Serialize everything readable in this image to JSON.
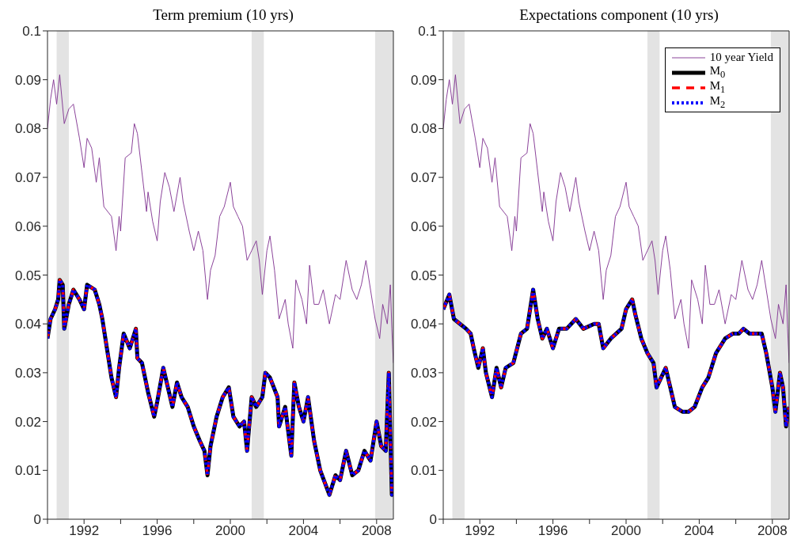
{
  "chart_data": [
    {
      "type": "line",
      "title": "Term premium (10 yrs)",
      "xlim": [
        "1990-01",
        "2008-12"
      ],
      "ylim": [
        0,
        0.1
      ],
      "xticks": [
        {
          "value": "1990",
          "label": null
        },
        "1992",
        {
          "value": "1994",
          "label": null
        },
        "1996",
        {
          "value": "1998",
          "label": null
        },
        "2000",
        {
          "value": "2002",
          "label": null
        },
        "2004",
        {
          "value": "2006",
          "label": null
        },
        "2008"
      ],
      "yticks": [
        0,
        0.01,
        0.02,
        0.03,
        0.04,
        0.05,
        0.06,
        0.07,
        0.08,
        0.09,
        0.1
      ],
      "grid": false,
      "legend": false,
      "bands": [
        {
          "axis": "x",
          "from": "1990-07",
          "to": "1991-03",
          "color": "#e3e3e3"
        },
        {
          "axis": "x",
          "from": "2001-03",
          "to": "2001-11",
          "color": "#e3e3e3"
        },
        {
          "axis": "x",
          "from": "2007-12",
          "to": "2008-12",
          "color": "#e3e3e3"
        }
      ],
      "series": [
        {
          "color": "#7e2f8e",
          "line_style": "solid",
          "x": [
            "1990-01",
            "1990-03",
            "1990-05",
            "1990-07",
            "1990-09",
            "1990-12",
            "1991-03",
            "1991-06",
            "1991-10",
            "1992-01",
            "1992-03",
            "1992-06",
            "1992-09",
            "1992-11",
            "1993-02",
            "1993-07",
            "1993-10",
            "1993-12",
            "1994-01",
            "1994-04",
            "1994-08",
            "1994-10",
            "1994-12",
            "1995-03",
            "1995-06",
            "1995-07",
            "1995-10",
            "1996-01",
            "1996-03",
            "1996-06",
            "1996-09",
            "1996-12",
            "1997-04",
            "1997-06",
            "1997-10",
            "1998-01",
            "1998-04",
            "1998-07",
            "1998-10",
            "1998-12",
            "1999-03",
            "1999-06",
            "1999-09",
            "2000-01",
            "2000-03",
            "2000-06",
            "2000-09",
            "2000-12",
            "2001-03",
            "2001-06",
            "2001-08",
            "2001-10",
            "2002-01",
            "2002-03",
            "2002-06",
            "2002-09",
            "2003-01",
            "2003-03",
            "2003-06",
            "2003-08",
            "2003-12",
            "2004-03",
            "2004-05",
            "2004-08",
            "2004-11",
            "2005-02",
            "2005-06",
            "2005-10",
            "2006-01",
            "2006-05",
            "2006-09",
            "2006-12",
            "2007-03",
            "2007-06",
            "2007-09",
            "2007-12",
            "2008-03",
            "2008-05",
            "2008-08",
            "2008-10",
            "2008-11",
            "2008-12"
          ],
          "values": [
            0.08,
            0.086,
            0.09,
            0.085,
            0.091,
            0.081,
            0.084,
            0.085,
            0.078,
            0.072,
            0.078,
            0.076,
            0.069,
            0.074,
            0.064,
            0.062,
            0.055,
            0.062,
            0.059,
            0.074,
            0.075,
            0.081,
            0.079,
            0.071,
            0.063,
            0.067,
            0.061,
            0.057,
            0.065,
            0.071,
            0.068,
            0.063,
            0.07,
            0.065,
            0.059,
            0.055,
            0.059,
            0.055,
            0.045,
            0.051,
            0.054,
            0.062,
            0.064,
            0.069,
            0.064,
            0.062,
            0.06,
            0.053,
            0.055,
            0.057,
            0.053,
            0.046,
            0.055,
            0.058,
            0.051,
            0.041,
            0.045,
            0.04,
            0.035,
            0.049,
            0.045,
            0.04,
            0.052,
            0.044,
            0.044,
            0.047,
            0.04,
            0.046,
            0.045,
            0.053,
            0.047,
            0.045,
            0.048,
            0.053,
            0.047,
            0.041,
            0.037,
            0.044,
            0.04,
            0.048,
            0.039,
            0.032
          ]
        },
        {
          "color": "#000000",
          "line_style": "solid",
          "x": [
            "1990-01",
            "1990-03",
            "1990-06",
            "1990-08",
            "1990-09",
            "1990-11",
            "1990-12",
            "1991-03",
            "1991-06",
            "1991-10",
            "1992-01",
            "1992-03",
            "1992-08",
            "1992-11",
            "1993-01",
            "1993-04",
            "1993-07",
            "1993-10",
            "1993-12",
            "1994-03",
            "1994-07",
            "1994-11",
            "1994-12",
            "1995-03",
            "1995-07",
            "1995-11",
            "1996-01",
            "1996-05",
            "1996-08",
            "1996-11",
            "1997-02",
            "1997-05",
            "1997-09",
            "1998-01",
            "1998-05",
            "1998-08",
            "1998-10",
            "1998-12",
            "1999-04",
            "1999-08",
            "1999-12",
            "2000-03",
            "2000-07",
            "2000-10",
            "2000-12",
            "2001-03",
            "2001-06",
            "2001-10",
            "2001-12",
            "2002-03",
            "2002-08",
            "2002-09",
            "2003-01",
            "2003-05",
            "2003-07",
            "2003-10",
            "2004-01",
            "2004-04",
            "2004-08",
            "2004-12",
            "2005-06",
            "2005-10",
            "2006-01",
            "2006-05",
            "2006-09",
            "2007-01",
            "2007-05",
            "2007-09",
            "2008-01",
            "2008-04",
            "2008-07",
            "2008-09",
            "2008-11",
            "2008-12"
          ],
          "values": [
            0.037,
            0.041,
            0.043,
            0.045,
            0.049,
            0.048,
            0.039,
            0.044,
            0.047,
            0.045,
            0.043,
            0.048,
            0.047,
            0.044,
            0.041,
            0.035,
            0.029,
            0.025,
            0.031,
            0.038,
            0.035,
            0.039,
            0.033,
            0.032,
            0.026,
            0.021,
            0.024,
            0.031,
            0.027,
            0.023,
            0.028,
            0.025,
            0.023,
            0.019,
            0.016,
            0.014,
            0.009,
            0.015,
            0.021,
            0.025,
            0.027,
            0.021,
            0.019,
            0.02,
            0.014,
            0.025,
            0.023,
            0.025,
            0.03,
            0.029,
            0.025,
            0.019,
            0.023,
            0.013,
            0.028,
            0.023,
            0.02,
            0.025,
            0.016,
            0.01,
            0.005,
            0.009,
            0.008,
            0.014,
            0.009,
            0.01,
            0.014,
            0.012,
            0.02,
            0.015,
            0.014,
            0.03,
            0.005,
            0.009
          ]
        },
        {
          "color": "#ff0000",
          "line_style": "dashed",
          "x": [
            "1990-01",
            "1990-03",
            "1990-06",
            "1990-08",
            "1990-09",
            "1990-11",
            "1990-12",
            "1991-03",
            "1991-06",
            "1991-10",
            "1992-01",
            "1992-03",
            "1992-08",
            "1992-11",
            "1993-01",
            "1993-04",
            "1993-07",
            "1993-10",
            "1993-12",
            "1994-03",
            "1994-07",
            "1994-11",
            "1994-12",
            "1995-03",
            "1995-07",
            "1995-11",
            "1996-01",
            "1996-05",
            "1996-08",
            "1996-11",
            "1997-02",
            "1997-05",
            "1997-09",
            "1998-01",
            "1998-05",
            "1998-08",
            "1998-10",
            "1998-12",
            "1999-04",
            "1999-08",
            "1999-12",
            "2000-03",
            "2000-07",
            "2000-10",
            "2000-12",
            "2001-03",
            "2001-06",
            "2001-10",
            "2001-12",
            "2002-03",
            "2002-08",
            "2002-09",
            "2003-01",
            "2003-05",
            "2003-07",
            "2003-10",
            "2004-01",
            "2004-04",
            "2004-08",
            "2004-12",
            "2005-06",
            "2005-10",
            "2006-01",
            "2006-05",
            "2006-09",
            "2007-01",
            "2007-05",
            "2007-09",
            "2008-01",
            "2008-04",
            "2008-07",
            "2008-09",
            "2008-11",
            "2008-12"
          ],
          "values": [
            0.037,
            0.041,
            0.043,
            0.045,
            0.049,
            0.048,
            0.039,
            0.044,
            0.047,
            0.045,
            0.043,
            0.048,
            0.047,
            0.044,
            0.041,
            0.035,
            0.029,
            0.025,
            0.031,
            0.038,
            0.035,
            0.039,
            0.033,
            0.032,
            0.026,
            0.021,
            0.024,
            0.031,
            0.027,
            0.023,
            0.028,
            0.025,
            0.023,
            0.019,
            0.016,
            0.014,
            0.009,
            0.015,
            0.021,
            0.025,
            0.027,
            0.021,
            0.019,
            0.02,
            0.014,
            0.025,
            0.023,
            0.025,
            0.03,
            0.029,
            0.025,
            0.019,
            0.023,
            0.013,
            0.028,
            0.023,
            0.02,
            0.025,
            0.016,
            0.01,
            0.005,
            0.009,
            0.008,
            0.014,
            0.009,
            0.01,
            0.014,
            0.012,
            0.02,
            0.015,
            0.014,
            0.03,
            0.005,
            0.009
          ]
        },
        {
          "color": "#0000ff",
          "line_style": "dotted",
          "x": [
            "1990-01",
            "1990-03",
            "1990-06",
            "1990-08",
            "1990-09",
            "1990-11",
            "1990-12",
            "1991-03",
            "1991-06",
            "1991-10",
            "1992-01",
            "1992-03",
            "1992-08",
            "1992-11",
            "1993-01",
            "1993-04",
            "1993-07",
            "1993-10",
            "1993-12",
            "1994-03",
            "1994-07",
            "1994-11",
            "1994-12",
            "1995-03",
            "1995-07",
            "1995-11",
            "1996-01",
            "1996-05",
            "1996-08",
            "1996-11",
            "1997-02",
            "1997-05",
            "1997-09",
            "1998-01",
            "1998-05",
            "1998-08",
            "1998-10",
            "1998-12",
            "1999-04",
            "1999-08",
            "1999-12",
            "2000-03",
            "2000-07",
            "2000-10",
            "2000-12",
            "2001-03",
            "2001-06",
            "2001-10",
            "2001-12",
            "2002-03",
            "2002-08",
            "2002-09",
            "2003-01",
            "2003-05",
            "2003-07",
            "2003-10",
            "2004-01",
            "2004-04",
            "2004-08",
            "2004-12",
            "2005-06",
            "2005-10",
            "2006-01",
            "2006-05",
            "2006-09",
            "2007-01",
            "2007-05",
            "2007-09",
            "2008-01",
            "2008-04",
            "2008-07",
            "2008-09",
            "2008-11",
            "2008-12"
          ],
          "values": [
            0.037,
            0.041,
            0.043,
            0.045,
            0.049,
            0.048,
            0.039,
            0.044,
            0.047,
            0.045,
            0.043,
            0.048,
            0.047,
            0.044,
            0.041,
            0.035,
            0.029,
            0.025,
            0.031,
            0.038,
            0.035,
            0.039,
            0.033,
            0.032,
            0.026,
            0.021,
            0.024,
            0.031,
            0.027,
            0.023,
            0.028,
            0.025,
            0.023,
            0.019,
            0.016,
            0.014,
            0.009,
            0.015,
            0.021,
            0.025,
            0.027,
            0.021,
            0.019,
            0.02,
            0.014,
            0.025,
            0.023,
            0.025,
            0.03,
            0.029,
            0.025,
            0.019,
            0.023,
            0.013,
            0.028,
            0.023,
            0.02,
            0.025,
            0.016,
            0.01,
            0.005,
            0.009,
            0.008,
            0.014,
            0.009,
            0.01,
            0.014,
            0.012,
            0.02,
            0.015,
            0.014,
            0.03,
            0.005,
            0.009
          ]
        }
      ]
    },
    {
      "type": "line",
      "title": "Expectations component (10 yrs)",
      "xlim": [
        "1990-01",
        "2008-12"
      ],
      "ylim": [
        0,
        0.1
      ],
      "xticks": [
        {
          "value": "1990",
          "label": null
        },
        "1992",
        {
          "value": "1994",
          "label": null
        },
        "1996",
        {
          "value": "1998",
          "label": null
        },
        "2000",
        {
          "value": "2002",
          "label": null
        },
        "2004",
        {
          "value": "2006",
          "label": null
        },
        "2008"
      ],
      "yticks": [
        0,
        0.01,
        0.02,
        0.03,
        0.04,
        0.05,
        0.06,
        0.07,
        0.08,
        0.09,
        0.1
      ],
      "grid": false,
      "legend": "top right",
      "bands": [
        {
          "axis": "x",
          "from": "1990-07",
          "to": "1991-03",
          "color": "#e3e3e3"
        },
        {
          "axis": "x",
          "from": "2001-03",
          "to": "2001-11",
          "color": "#e3e3e3"
        },
        {
          "axis": "x",
          "from": "2007-12",
          "to": "2008-12",
          "color": "#e3e3e3"
        }
      ],
      "series": [
        {
          "name": "10 year Yield",
          "color": "#7e2f8e",
          "line_style": "solid",
          "x": [
            "1990-01",
            "1990-03",
            "1990-05",
            "1990-07",
            "1990-09",
            "1990-12",
            "1991-03",
            "1991-06",
            "1991-10",
            "1992-01",
            "1992-03",
            "1992-06",
            "1992-09",
            "1992-11",
            "1993-02",
            "1993-07",
            "1993-10",
            "1993-12",
            "1994-01",
            "1994-04",
            "1994-08",
            "1994-10",
            "1994-12",
            "1995-03",
            "1995-06",
            "1995-07",
            "1995-10",
            "1996-01",
            "1996-03",
            "1996-06",
            "1996-09",
            "1996-12",
            "1997-04",
            "1997-06",
            "1997-10",
            "1998-01",
            "1998-04",
            "1998-07",
            "1998-10",
            "1998-12",
            "1999-03",
            "1999-06",
            "1999-09",
            "2000-01",
            "2000-03",
            "2000-06",
            "2000-09",
            "2000-12",
            "2001-03",
            "2001-06",
            "2001-08",
            "2001-10",
            "2002-01",
            "2002-03",
            "2002-06",
            "2002-09",
            "2003-01",
            "2003-03",
            "2003-06",
            "2003-08",
            "2003-12",
            "2004-03",
            "2004-05",
            "2004-08",
            "2004-11",
            "2005-02",
            "2005-06",
            "2005-10",
            "2006-01",
            "2006-05",
            "2006-09",
            "2006-12",
            "2007-03",
            "2007-06",
            "2007-09",
            "2007-12",
            "2008-03",
            "2008-05",
            "2008-08",
            "2008-10",
            "2008-11",
            "2008-12"
          ],
          "values": [
            0.08,
            0.086,
            0.09,
            0.085,
            0.091,
            0.081,
            0.084,
            0.085,
            0.078,
            0.072,
            0.078,
            0.076,
            0.069,
            0.074,
            0.064,
            0.062,
            0.055,
            0.062,
            0.059,
            0.074,
            0.075,
            0.081,
            0.079,
            0.071,
            0.063,
            0.067,
            0.061,
            0.057,
            0.065,
            0.071,
            0.068,
            0.063,
            0.07,
            0.065,
            0.059,
            0.055,
            0.059,
            0.055,
            0.045,
            0.051,
            0.054,
            0.062,
            0.064,
            0.069,
            0.064,
            0.062,
            0.06,
            0.053,
            0.055,
            0.057,
            0.053,
            0.046,
            0.055,
            0.058,
            0.051,
            0.041,
            0.045,
            0.04,
            0.035,
            0.049,
            0.045,
            0.04,
            0.052,
            0.044,
            0.044,
            0.047,
            0.04,
            0.046,
            0.045,
            0.053,
            0.047,
            0.045,
            0.048,
            0.053,
            0.047,
            0.041,
            0.037,
            0.044,
            0.04,
            0.048,
            0.039,
            0.032
          ]
        },
        {
          "name": "M$_{0}$",
          "color": "#000000",
          "line_style": "solid",
          "x": [
            "1990-01",
            "1990-05",
            "1990-08",
            "1990-12",
            "1991-04",
            "1991-07",
            "1991-09",
            "1991-12",
            "1992-03",
            "1992-05",
            "1992-09",
            "1992-12",
            "1993-03",
            "1993-06",
            "1993-11",
            "1994-04",
            "1994-08",
            "1994-12",
            "1995-03",
            "1995-06",
            "1995-09",
            "1996-01",
            "1996-05",
            "1996-10",
            "1997-04",
            "1997-09",
            "1998-04",
            "1998-07",
            "1998-10",
            "1999-03",
            "1999-10",
            "2000-01",
            "2000-05",
            "2000-07",
            "2000-11",
            "2001-03",
            "2001-07",
            "2001-09",
            "2001-12",
            "2002-03",
            "2002-06",
            "2002-09",
            "2003-02",
            "2003-06",
            "2003-10",
            "2004-03",
            "2004-07",
            "2004-12",
            "2005-06",
            "2005-11",
            "2006-03",
            "2006-06",
            "2006-10",
            "2007-03",
            "2007-06",
            "2007-09",
            "2008-01",
            "2008-03",
            "2008-06",
            "2008-08",
            "2008-10",
            "2008-12"
          ],
          "values": [
            0.043,
            0.046,
            0.041,
            0.04,
            0.039,
            0.038,
            0.035,
            0.031,
            0.035,
            0.03,
            0.025,
            0.031,
            0.027,
            0.031,
            0.032,
            0.038,
            0.039,
            0.047,
            0.041,
            0.037,
            0.039,
            0.035,
            0.039,
            0.039,
            0.041,
            0.039,
            0.04,
            0.04,
            0.035,
            0.037,
            0.039,
            0.043,
            0.045,
            0.042,
            0.037,
            0.034,
            0.032,
            0.027,
            0.029,
            0.031,
            0.027,
            0.023,
            0.022,
            0.022,
            0.023,
            0.027,
            0.029,
            0.034,
            0.037,
            0.038,
            0.038,
            0.039,
            0.038,
            0.038,
            0.038,
            0.034,
            0.027,
            0.022,
            0.03,
            0.027,
            0.019,
            0.023
          ]
        },
        {
          "name": "M$_{1}$",
          "color": "#ff0000",
          "line_style": "dashed",
          "x": [
            "1990-01",
            "1990-05",
            "1990-08",
            "1990-12",
            "1991-04",
            "1991-07",
            "1991-09",
            "1991-12",
            "1992-03",
            "1992-05",
            "1992-09",
            "1992-12",
            "1993-03",
            "1993-06",
            "1993-11",
            "1994-04",
            "1994-08",
            "1994-12",
            "1995-03",
            "1995-06",
            "1995-09",
            "1996-01",
            "1996-05",
            "1996-10",
            "1997-04",
            "1997-09",
            "1998-04",
            "1998-07",
            "1998-10",
            "1999-03",
            "1999-10",
            "2000-01",
            "2000-05",
            "2000-07",
            "2000-11",
            "2001-03",
            "2001-07",
            "2001-09",
            "2001-12",
            "2002-03",
            "2002-06",
            "2002-09",
            "2003-02",
            "2003-06",
            "2003-10",
            "2004-03",
            "2004-07",
            "2004-12",
            "2005-06",
            "2005-11",
            "2006-03",
            "2006-06",
            "2006-10",
            "2007-03",
            "2007-06",
            "2007-09",
            "2008-01",
            "2008-03",
            "2008-06",
            "2008-08",
            "2008-10",
            "2008-12"
          ],
          "values": [
            0.043,
            0.046,
            0.041,
            0.04,
            0.039,
            0.038,
            0.035,
            0.031,
            0.035,
            0.03,
            0.025,
            0.031,
            0.027,
            0.031,
            0.032,
            0.038,
            0.039,
            0.047,
            0.041,
            0.037,
            0.039,
            0.035,
            0.039,
            0.039,
            0.041,
            0.039,
            0.04,
            0.04,
            0.035,
            0.037,
            0.039,
            0.043,
            0.045,
            0.042,
            0.037,
            0.034,
            0.032,
            0.027,
            0.029,
            0.031,
            0.027,
            0.023,
            0.022,
            0.022,
            0.023,
            0.027,
            0.029,
            0.034,
            0.037,
            0.038,
            0.038,
            0.039,
            0.038,
            0.038,
            0.038,
            0.034,
            0.027,
            0.022,
            0.03,
            0.027,
            0.019,
            0.023
          ]
        },
        {
          "name": "M$_{2}$",
          "color": "#0000ff",
          "line_style": "dotted",
          "x": [
            "1990-01",
            "1990-05",
            "1990-08",
            "1990-12",
            "1991-04",
            "1991-07",
            "1991-09",
            "1991-12",
            "1992-03",
            "1992-05",
            "1992-09",
            "1992-12",
            "1993-03",
            "1993-06",
            "1993-11",
            "1994-04",
            "1994-08",
            "1994-12",
            "1995-03",
            "1995-06",
            "1995-09",
            "1996-01",
            "1996-05",
            "1996-10",
            "1997-04",
            "1997-09",
            "1998-04",
            "1998-07",
            "1998-10",
            "1999-03",
            "1999-10",
            "2000-01",
            "2000-05",
            "2000-07",
            "2000-11",
            "2001-03",
            "2001-07",
            "2001-09",
            "2001-12",
            "2002-03",
            "2002-06",
            "2002-09",
            "2003-02",
            "2003-06",
            "2003-10",
            "2004-03",
            "2004-07",
            "2004-12",
            "2005-06",
            "2005-11",
            "2006-03",
            "2006-06",
            "2006-10",
            "2007-03",
            "2007-06",
            "2007-09",
            "2008-01",
            "2008-03",
            "2008-06",
            "2008-08",
            "2008-10",
            "2008-12"
          ],
          "values": [
            0.043,
            0.046,
            0.041,
            0.04,
            0.039,
            0.038,
            0.035,
            0.031,
            0.035,
            0.03,
            0.025,
            0.031,
            0.027,
            0.031,
            0.032,
            0.038,
            0.039,
            0.047,
            0.041,
            0.037,
            0.039,
            0.035,
            0.039,
            0.039,
            0.041,
            0.039,
            0.04,
            0.04,
            0.035,
            0.037,
            0.039,
            0.043,
            0.045,
            0.042,
            0.037,
            0.034,
            0.032,
            0.027,
            0.029,
            0.031,
            0.027,
            0.023,
            0.022,
            0.022,
            0.023,
            0.027,
            0.029,
            0.034,
            0.037,
            0.038,
            0.038,
            0.039,
            0.038,
            0.038,
            0.038,
            0.034,
            0.027,
            0.022,
            0.03,
            0.027,
            0.019,
            0.023
          ]
        }
      ]
    }
  ]
}
